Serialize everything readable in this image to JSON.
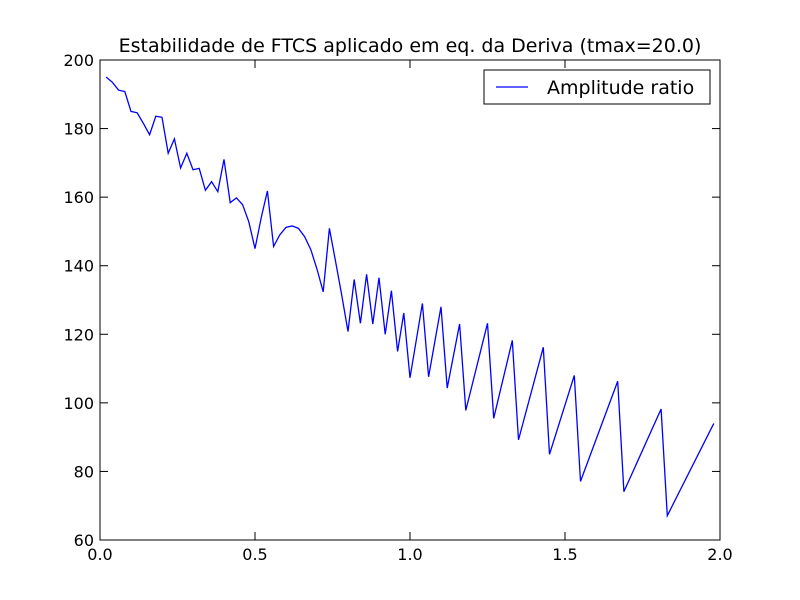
{
  "chart_data": {
    "type": "line",
    "title": "Estabilidade de FTCS aplicado em eq. da Deriva (tmax=20.0)",
    "xlabel": "",
    "ylabel": "",
    "xlim": [
      0.0,
      2.0
    ],
    "ylim": [
      60,
      200
    ],
    "x_ticks": [
      "0.0",
      "0.5",
      "1.0",
      "1.5",
      "2.0"
    ],
    "x_tick_values": [
      0.0,
      0.5,
      1.0,
      1.5,
      2.0
    ],
    "y_ticks": [
      "60",
      "80",
      "100",
      "120",
      "140",
      "160",
      "180",
      "200"
    ],
    "y_tick_values": [
      60,
      80,
      100,
      120,
      140,
      160,
      180,
      200
    ],
    "grid": false,
    "legend_position": "top-right",
    "series": [
      {
        "name": "Amplitude ratio",
        "color": "#0000ff",
        "x": [
          0.02,
          0.04,
          0.06,
          0.08,
          0.1,
          0.12,
          0.14,
          0.16,
          0.18,
          0.2,
          0.22,
          0.24,
          0.26,
          0.28,
          0.3,
          0.32,
          0.34,
          0.36,
          0.38,
          0.4,
          0.42,
          0.44,
          0.46,
          0.48,
          0.5,
          0.52,
          0.54,
          0.56,
          0.58,
          0.6,
          0.62,
          0.64,
          0.66,
          0.68,
          0.7,
          0.72,
          0.74,
          0.76,
          0.78,
          0.8,
          0.82,
          0.84,
          0.86,
          0.88,
          0.9,
          0.92,
          0.94,
          0.96,
          0.98,
          1.0,
          1.04,
          1.06,
          1.1,
          1.12,
          1.16,
          1.18,
          1.25,
          1.27,
          1.33,
          1.35,
          1.43,
          1.45,
          1.53,
          1.55,
          1.67,
          1.69,
          1.81,
          1.83,
          1.98
        ],
        "y": [
          195,
          193.5,
          191.2,
          190.8,
          185.0,
          184.6,
          181.5,
          178.2,
          183.6,
          183.3,
          172.8,
          177.0,
          168.5,
          172.8,
          168.0,
          168.4,
          162.0,
          164.5,
          161.6,
          171.0,
          158.4,
          159.8,
          157.8,
          152.8,
          145.0,
          154.0,
          161.8,
          145.6,
          149.0,
          151.2,
          151.6,
          150.9,
          148.5,
          144.7,
          139.0,
          132.4,
          150.9,
          141.2,
          131.3,
          120.8,
          136.0,
          123.2,
          137.5,
          123.0,
          136.5,
          120.0,
          132.7,
          115.0,
          126.2,
          107.3,
          129.0,
          107.6,
          128.0,
          104.3,
          123.0,
          97.8,
          123.2,
          95.5,
          118.2,
          89.2,
          116.2,
          85.0,
          108.0,
          77.1,
          106.3,
          74.1,
          98.2,
          67.1,
          94.0
        ]
      }
    ]
  }
}
